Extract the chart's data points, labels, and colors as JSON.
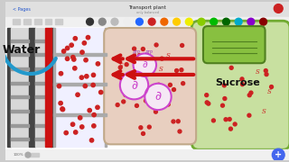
{
  "bg_color": "#ffffff",
  "top_chrome_color": "#e8e8e8",
  "title_text": "Transport plant",
  "subtitle_text": "only balanced",
  "water_label": "Water",
  "sucrose_label": "Sucrose",
  "xylem_wall_color": "#555555",
  "xylem_fill_color": "#cccccc",
  "xylem_bar_color": "#777777",
  "phloem_tube_color": "#ddeeff",
  "phloem_border": "#aaaaaa",
  "sieve_plate_color": "#999999",
  "red_stripe_color": "#cc1111",
  "companion_cell_bg": "#e8cfc0",
  "companion_cell_border": "#c0a888",
  "nucleus_fill": "#f5e8f5",
  "nucleus_border": "#cc44cc",
  "atp_color": "#9933bb",
  "s_label_color": "#cc2222",
  "mesophyll_bg": "#c8e0a0",
  "mesophyll_border": "#70aa30",
  "chloroplast_bg": "#88c040",
  "chloroplast_border": "#508020",
  "dot_color": "#cc2222",
  "arrow_red": "#cc1111",
  "arrow_blue": "#2299cc",
  "pages_text": "< Pages",
  "percent_text": "100%",
  "plus_button_color": "#4466ee",
  "red_record_color": "#cc2222"
}
